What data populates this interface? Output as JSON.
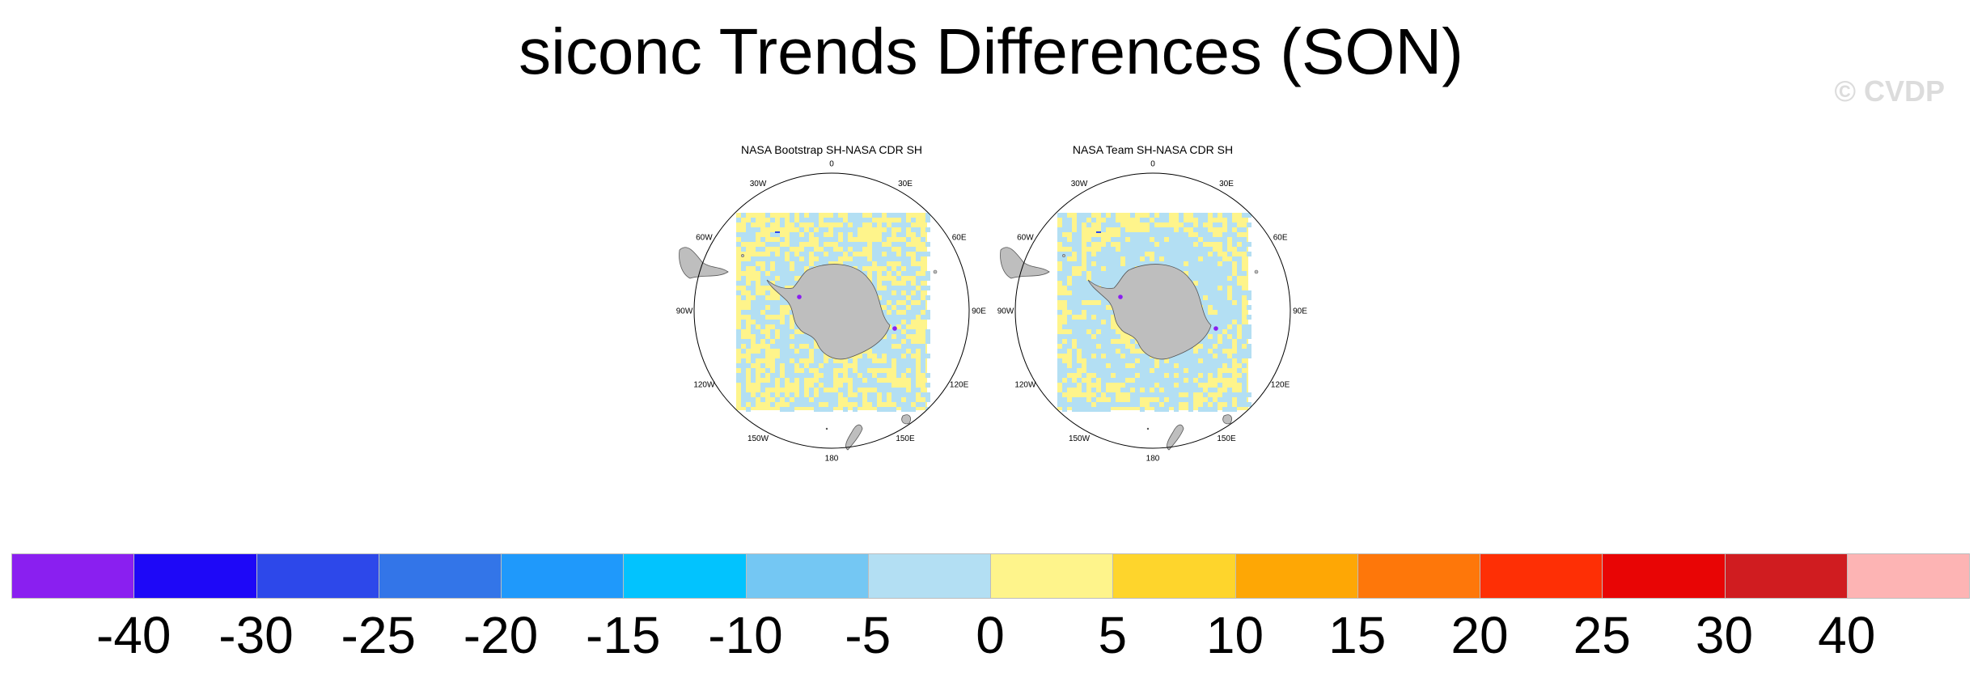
{
  "title": "siconc Trends Differences (SON)",
  "watermark": "© CVDP",
  "panels": [
    {
      "title": "NASA Bootstrap SH-NASA CDR SH",
      "lon_labels": [
        "0",
        "30E",
        "60E",
        "90E",
        "120E",
        "150E",
        "180",
        "150W",
        "120W",
        "90W",
        "60W",
        "30W"
      ]
    },
    {
      "title": "NASA Team SH-NASA CDR SH",
      "lon_labels": [
        "0",
        "30E",
        "60E",
        "90E",
        "120E",
        "150E",
        "180",
        "150W",
        "120W",
        "90W",
        "60W",
        "30W"
      ]
    }
  ],
  "colorbar": {
    "levels": [
      "-40",
      "-30",
      "-25",
      "-20",
      "-15",
      "-10",
      "-5",
      "0",
      "5",
      "10",
      "15",
      "20",
      "25",
      "30",
      "40"
    ],
    "colors": [
      "#8a1ff0",
      "#1e08f7",
      "#2d48ea",
      "#3375e8",
      "#1f99fb",
      "#02c3fe",
      "#74c7f3",
      "#b3dff3",
      "#fef48b",
      "#fed52c",
      "#fea705",
      "#fe770a",
      "#fe2f05",
      "#e80505",
      "#d01c20",
      "#fdb4b4"
    ]
  },
  "colors": {
    "land": "#bebebe",
    "ocean_light_blue": "#b3dff3",
    "ocean_light_yellow": "#fef48b",
    "dot_purple": "#8a1ff0"
  }
}
